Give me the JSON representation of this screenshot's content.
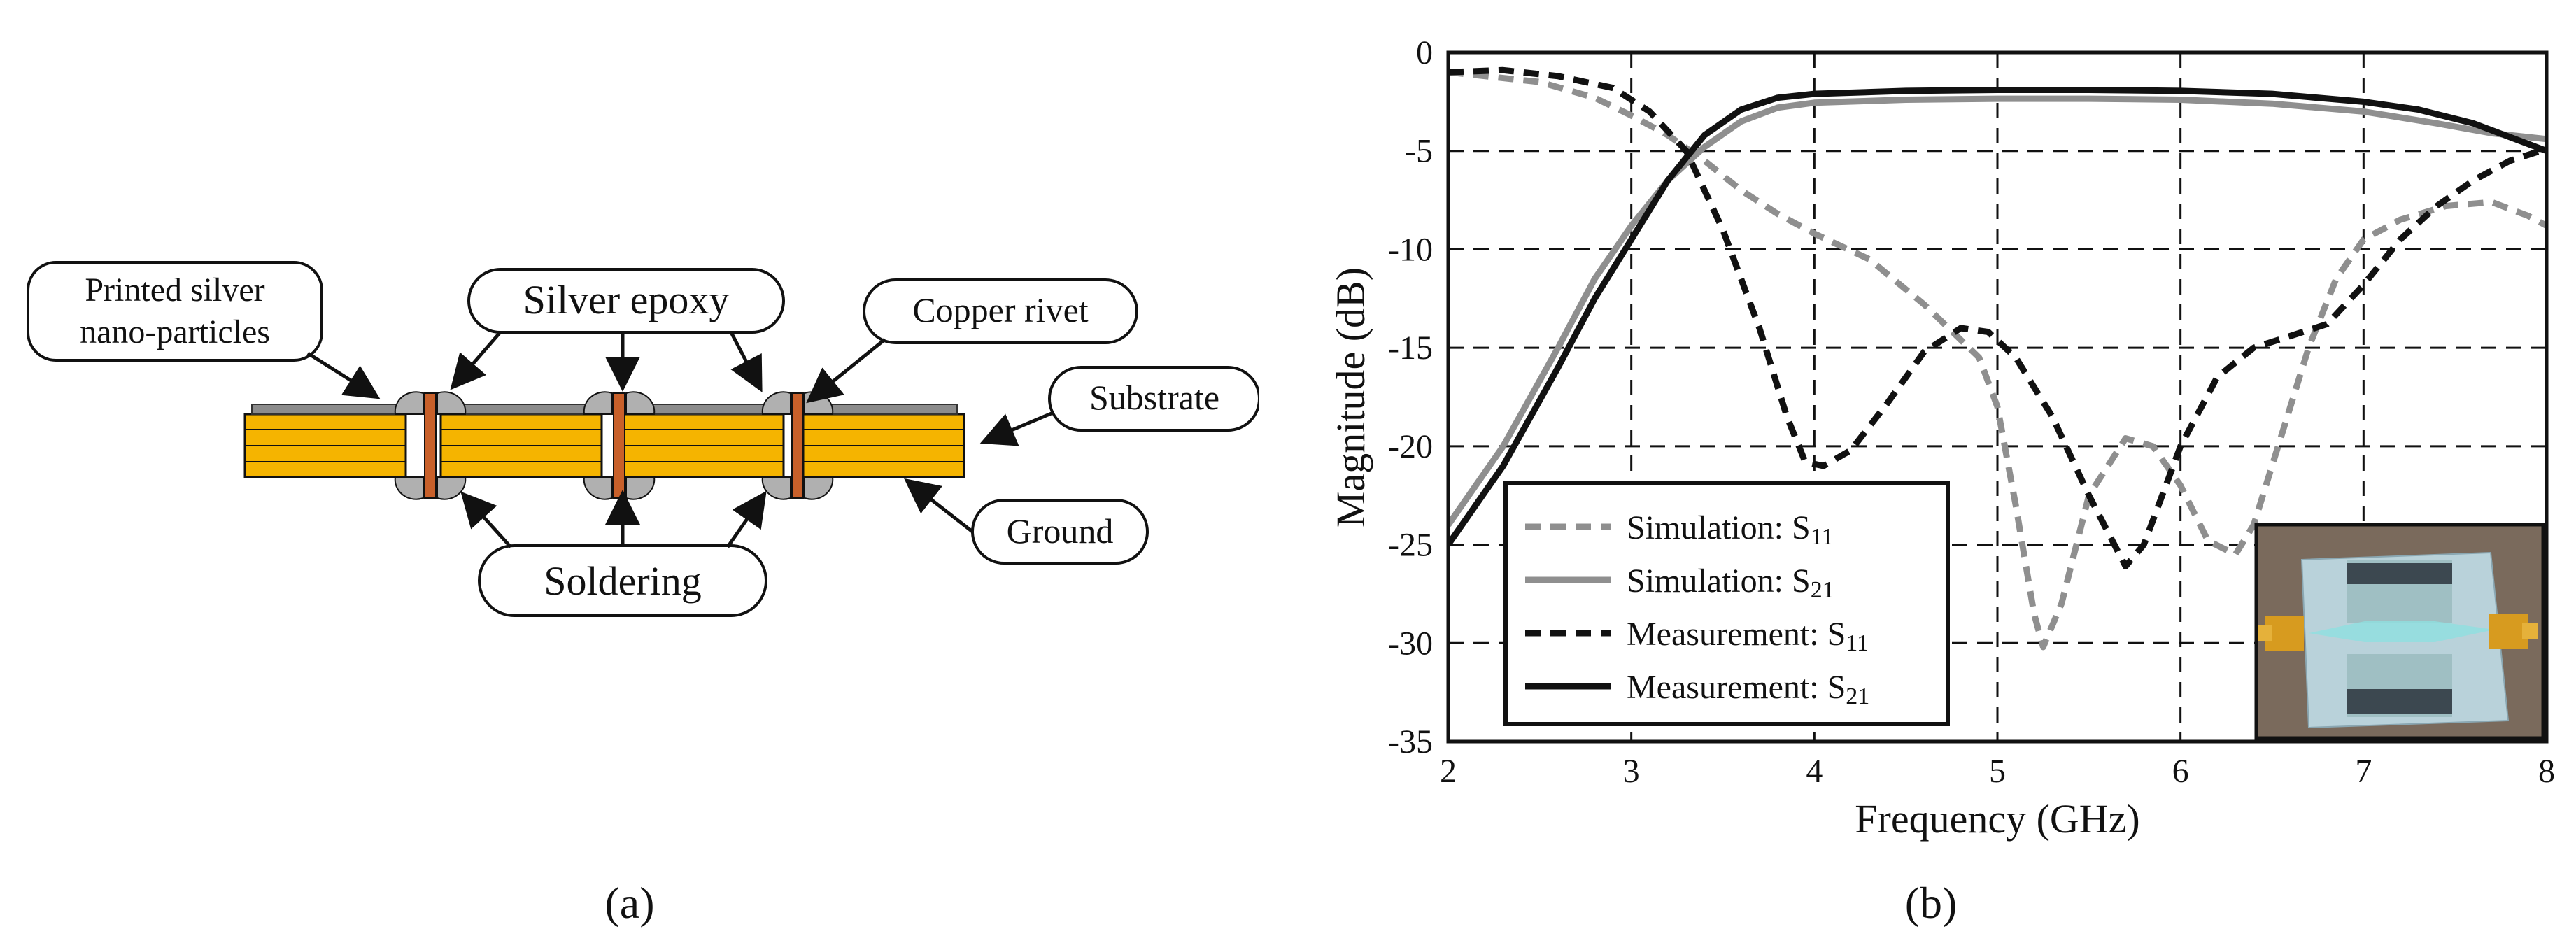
{
  "panel_a": {
    "caption": "(a)",
    "callouts": {
      "printed_silver_line1": "Printed silver",
      "printed_silver_line2": "nano-particles",
      "silver_epoxy": "Silver epoxy",
      "copper_rivet": "Copper rivet",
      "substrate": "Substrate",
      "ground": "Ground",
      "soldering": "Soldering"
    },
    "colors": {
      "substrate": "#f5b400",
      "silver": "#8c8c8c",
      "copper": "#c8602a",
      "solder": "#b0b0b0"
    }
  },
  "panel_b": {
    "caption": "(b)"
  },
  "chart_data": {
    "type": "line",
    "xlabel": "Frequency (GHz)",
    "ylabel": "Magnitude (dB)",
    "xlim": [
      2,
      8
    ],
    "ylim": [
      -35,
      0
    ],
    "xticks": [
      2,
      3,
      4,
      5,
      6,
      7,
      8
    ],
    "yticks": [
      0,
      -5,
      -10,
      -15,
      -20,
      -25,
      -30,
      -35
    ],
    "grid": true,
    "legend": {
      "placement": "bottom-left",
      "entries": [
        {
          "main": "Simulation: S",
          "sub": "11"
        },
        {
          "main": "Simulation: S",
          "sub": "21"
        },
        {
          "main": "Measurement: S",
          "sub": "11"
        },
        {
          "main": "Measurement: S",
          "sub": "21"
        }
      ]
    },
    "series": [
      {
        "color": "#8f8f8f",
        "dash": true,
        "points": [
          [
            2,
            -1.0
          ],
          [
            2.5,
            -1.5
          ],
          [
            2.8,
            -2.3
          ],
          [
            3.0,
            -3.2
          ],
          [
            3.2,
            -4.2
          ],
          [
            3.4,
            -5.5
          ],
          [
            3.6,
            -7.0
          ],
          [
            3.8,
            -8.2
          ],
          [
            4.0,
            -9.2
          ],
          [
            4.3,
            -10.5
          ],
          [
            4.6,
            -12.8
          ],
          [
            4.9,
            -15.5
          ],
          [
            5.0,
            -18.0
          ],
          [
            5.1,
            -23.0
          ],
          [
            5.2,
            -28.5
          ],
          [
            5.25,
            -30.2
          ],
          [
            5.35,
            -28.0
          ],
          [
            5.5,
            -22.5
          ],
          [
            5.7,
            -19.6
          ],
          [
            5.85,
            -20.0
          ],
          [
            6.0,
            -22.0
          ],
          [
            6.15,
            -24.8
          ],
          [
            6.3,
            -25.5
          ],
          [
            6.4,
            -24.0
          ],
          [
            6.55,
            -19.5
          ],
          [
            6.7,
            -15.0
          ],
          [
            6.85,
            -11.5
          ],
          [
            7.0,
            -9.5
          ],
          [
            7.2,
            -8.5
          ],
          [
            7.45,
            -7.8
          ],
          [
            7.7,
            -7.6
          ],
          [
            7.9,
            -8.3
          ],
          [
            8.0,
            -8.8
          ]
        ]
      },
      {
        "color": "#8f8f8f",
        "dash": false,
        "points": [
          [
            2,
            -24.0
          ],
          [
            2.3,
            -20.0
          ],
          [
            2.6,
            -15.0
          ],
          [
            2.8,
            -11.5
          ],
          [
            3.0,
            -8.8
          ],
          [
            3.2,
            -6.5
          ],
          [
            3.4,
            -4.8
          ],
          [
            3.6,
            -3.5
          ],
          [
            3.8,
            -2.8
          ],
          [
            4.0,
            -2.55
          ],
          [
            4.5,
            -2.4
          ],
          [
            5.0,
            -2.35
          ],
          [
            5.5,
            -2.35
          ],
          [
            6.0,
            -2.4
          ],
          [
            6.5,
            -2.6
          ],
          [
            7.0,
            -3.0
          ],
          [
            7.4,
            -3.6
          ],
          [
            7.7,
            -4.1
          ],
          [
            8.0,
            -4.4
          ]
        ]
      },
      {
        "color": "#111111",
        "dash": true,
        "points": [
          [
            2,
            -1.0
          ],
          [
            2.3,
            -0.9
          ],
          [
            2.6,
            -1.2
          ],
          [
            2.9,
            -1.8
          ],
          [
            3.1,
            -3.0
          ],
          [
            3.3,
            -5.0
          ],
          [
            3.5,
            -9.0
          ],
          [
            3.7,
            -14.0
          ],
          [
            3.85,
            -18.5
          ],
          [
            3.95,
            -20.8
          ],
          [
            4.05,
            -21.0
          ],
          [
            4.2,
            -20.2
          ],
          [
            4.4,
            -17.8
          ],
          [
            4.6,
            -15.2
          ],
          [
            4.8,
            -14.0
          ],
          [
            4.95,
            -14.2
          ],
          [
            5.1,
            -15.5
          ],
          [
            5.3,
            -18.5
          ],
          [
            5.5,
            -22.5
          ],
          [
            5.7,
            -26.1
          ],
          [
            5.8,
            -25.0
          ],
          [
            6.0,
            -20.0
          ],
          [
            6.2,
            -16.5
          ],
          [
            6.4,
            -15.0
          ],
          [
            6.6,
            -14.4
          ],
          [
            6.8,
            -13.8
          ],
          [
            7.0,
            -11.8
          ],
          [
            7.2,
            -9.5
          ],
          [
            7.4,
            -7.8
          ],
          [
            7.6,
            -6.5
          ],
          [
            7.8,
            -5.5
          ],
          [
            8.0,
            -4.9
          ]
        ]
      },
      {
        "color": "#111111",
        "dash": false,
        "points": [
          [
            2,
            -25.0
          ],
          [
            2.3,
            -21.0
          ],
          [
            2.6,
            -16.0
          ],
          [
            2.8,
            -12.5
          ],
          [
            3.0,
            -9.5
          ],
          [
            3.2,
            -6.5
          ],
          [
            3.4,
            -4.2
          ],
          [
            3.6,
            -2.9
          ],
          [
            3.8,
            -2.3
          ],
          [
            4.0,
            -2.1
          ],
          [
            4.5,
            -1.95
          ],
          [
            5.0,
            -1.9
          ],
          [
            5.5,
            -1.9
          ],
          [
            6.0,
            -1.95
          ],
          [
            6.5,
            -2.1
          ],
          [
            7.0,
            -2.5
          ],
          [
            7.3,
            -2.9
          ],
          [
            7.6,
            -3.6
          ],
          [
            7.8,
            -4.3
          ],
          [
            8.0,
            -5.0
          ]
        ]
      }
    ],
    "inset": "photo of fabricated device",
    "tick_labels_x": [
      "2",
      "3",
      "4",
      "5",
      "6",
      "7",
      "8"
    ],
    "tick_labels_y": [
      "0",
      "-5",
      "-10",
      "-15",
      "-20",
      "-25",
      "-30",
      "-35"
    ]
  }
}
